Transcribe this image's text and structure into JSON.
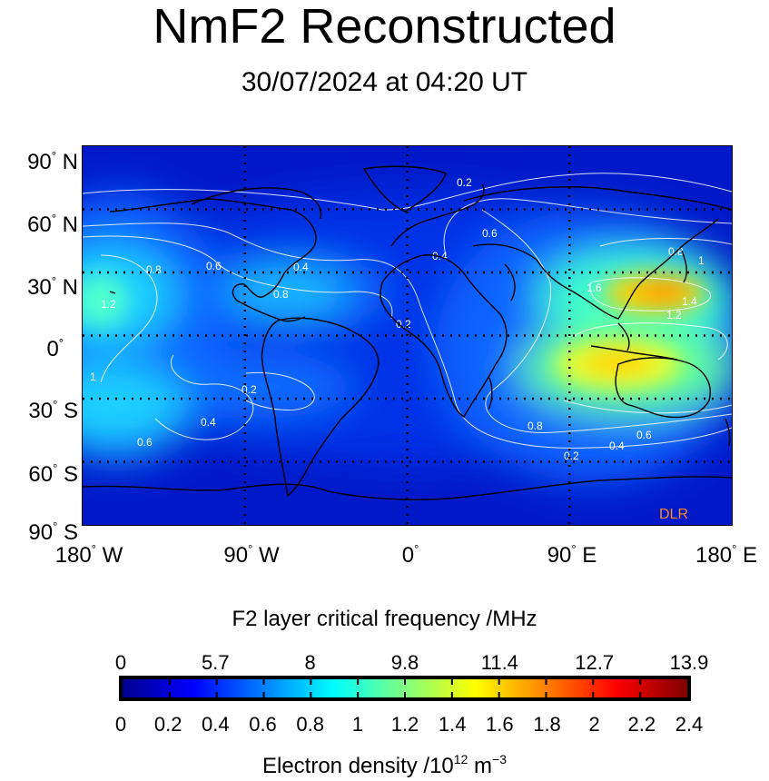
{
  "title": "NmF2 Reconstructed",
  "subtitle": "30/07/2024 at 04:20 UT",
  "lat_labels": [
    "90",
    "N",
    "60",
    "N",
    "30",
    "N",
    "0",
    "30",
    "S",
    "60",
    "S",
    "90",
    "S"
  ],
  "lat_ticks": [
    {
      "deg": "90",
      "hemi": "N"
    },
    {
      "deg": "60",
      "hemi": "N"
    },
    {
      "deg": "30",
      "hemi": "N"
    },
    {
      "deg": "0",
      "hemi": ""
    },
    {
      "deg": "30",
      "hemi": "S"
    },
    {
      "deg": "60",
      "hemi": "S"
    },
    {
      "deg": "90",
      "hemi": "S"
    }
  ],
  "lon_ticks": [
    {
      "deg": "180",
      "hemi": "W"
    },
    {
      "deg": "90",
      "hemi": "W"
    },
    {
      "deg": "0",
      "hemi": ""
    },
    {
      "deg": "90",
      "hemi": "E"
    },
    {
      "deg": "180",
      "hemi": "E"
    }
  ],
  "watermark": "DLR",
  "contour_labels": [
    "0.2",
    "0.4",
    "0.6",
    "0.8",
    "1",
    "1.2",
    "1.4",
    "1.6"
  ],
  "colorbar": {
    "title": "F2 layer critical frequency /MHz",
    "top_ticks": [
      "0",
      "5.7",
      "8",
      "9.8",
      "11.4",
      "12.7",
      "13.9"
    ],
    "bottom_ticks": [
      "0",
      "0.2",
      "0.4",
      "0.6",
      "0.8",
      "1",
      "1.2",
      "1.4",
      "1.6",
      "1.8",
      "2",
      "2.2",
      "2.4"
    ],
    "caption_prefix": "Electron density /10",
    "caption_exp": "12",
    "caption_unit": " m",
    "caption_unit_exp": "−3",
    "range": [
      0,
      2.4
    ],
    "colormap": "jet"
  },
  "colors": {
    "background_low": "#0019c8",
    "peak": "#ffd700",
    "contour": "#ffffff",
    "coastline": "#000000",
    "watermark": "#ff8a1e"
  }
}
